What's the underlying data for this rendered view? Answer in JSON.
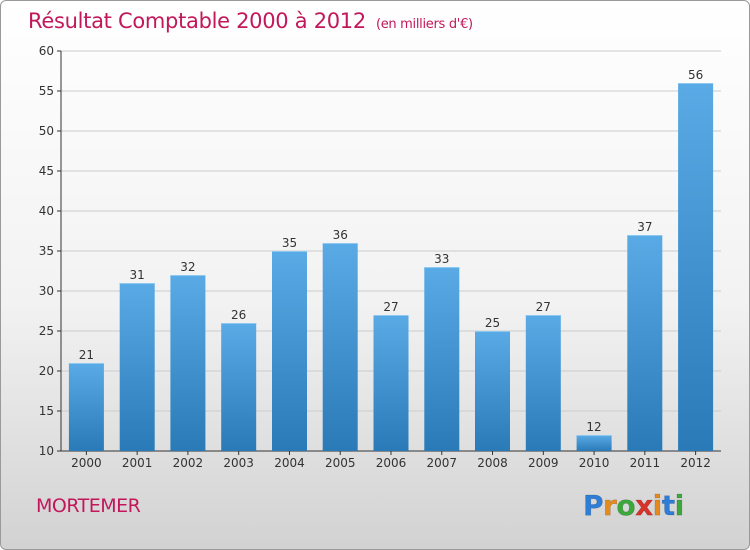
{
  "header": {
    "title": "Résultat Comptable 2000 à 2012",
    "unit": "(en milliers d'€)"
  },
  "footer": {
    "town": "MORTEMER",
    "brand_letters": [
      "P",
      "r",
      "o",
      "x",
      "i",
      "t",
      "i"
    ],
    "brand_colors": [
      "#2e7dd6",
      "#e58a1c",
      "#3ca83c",
      "#d8322a",
      "#e58a1c",
      "#2e7dd6",
      "#3ca83c"
    ]
  },
  "colors": {
    "accent": "#c2185b",
    "bar_light": "#5aaae6",
    "bar_dark": "#2a7ab8",
    "grid": "#cccccc",
    "axis": "#333333"
  },
  "chart_data": {
    "type": "bar",
    "title": "Résultat Comptable 2000 à 2012",
    "subtitle": "(en milliers d'€)",
    "xlabel": "",
    "ylabel": "",
    "categories": [
      "2000",
      "2001",
      "2002",
      "2003",
      "2004",
      "2005",
      "2006",
      "2007",
      "2008",
      "2009",
      "2010",
      "2011",
      "2012"
    ],
    "values": [
      21,
      31,
      32,
      26,
      35,
      36,
      27,
      33,
      25,
      27,
      12,
      37,
      56
    ],
    "ylim": [
      10,
      60
    ],
    "yticks": [
      10,
      15,
      20,
      25,
      30,
      35,
      40,
      45,
      50,
      55,
      60
    ],
    "grid": true,
    "legend": "none"
  }
}
